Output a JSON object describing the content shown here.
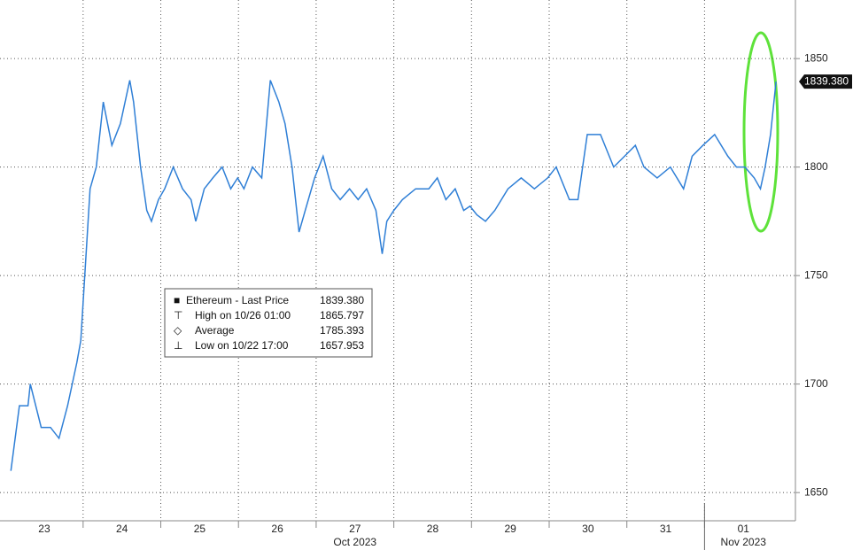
{
  "chart_data": {
    "type": "line",
    "series": [
      {
        "name": "Ethereum - Last Price",
        "color": "#2f7fd6",
        "x": [
          0.07,
          0.18,
          0.29,
          0.32,
          0.46,
          0.58,
          0.69,
          0.8,
          0.92,
          0.97,
          1.09,
          1.17,
          1.26,
          1.37,
          1.48,
          1.6,
          1.65,
          1.74,
          1.82,
          1.88,
          1.97,
          2.05,
          2.16,
          2.28,
          2.39,
          2.45,
          2.56,
          2.67,
          2.79,
          2.9,
          2.99,
          3.07,
          3.18,
          3.3,
          3.41,
          3.52,
          3.6,
          3.69,
          3.78,
          3.86,
          3.98,
          4.09,
          4.2,
          4.31,
          4.43,
          4.54,
          4.65,
          4.77,
          4.85,
          4.91,
          5.0,
          5.11,
          5.28,
          5.45,
          5.56,
          5.67,
          5.79,
          5.9,
          5.98,
          6.07,
          6.18,
          6.3,
          6.47,
          6.64,
          6.81,
          6.98,
          7.09,
          7.26,
          7.37,
          7.49,
          7.66,
          7.83,
          7.97,
          8.11,
          8.22,
          8.39,
          8.56,
          8.73,
          8.84,
          8.98,
          9.13,
          9.3,
          9.41,
          9.52,
          9.64,
          9.72,
          9.78,
          9.85,
          9.92
        ],
        "values": [
          1660,
          1690,
          1690,
          1700,
          1680,
          1680,
          1675,
          1690,
          1710,
          1720,
          1790,
          1800,
          1830,
          1810,
          1820,
          1840,
          1830,
          1800,
          1780,
          1775,
          1785,
          1790,
          1800,
          1790,
          1785,
          1775,
          1790,
          1795,
          1800,
          1790,
          1795,
          1790,
          1800,
          1795,
          1840,
          1830,
          1820,
          1800,
          1770,
          1780,
          1795,
          1805,
          1790,
          1785,
          1790,
          1785,
          1790,
          1780,
          1760,
          1775,
          1780,
          1785,
          1790,
          1790,
          1795,
          1785,
          1790,
          1780,
          1782,
          1778,
          1775,
          1780,
          1790,
          1795,
          1790,
          1795,
          1800,
          1785,
          1785,
          1815,
          1815,
          1800,
          1805,
          1810,
          1800,
          1795,
          1800,
          1790,
          1805,
          1810,
          1815,
          1805,
          1800,
          1800,
          1795,
          1790,
          1800,
          1815,
          1839.38
        ]
      }
    ],
    "last_price_label": "1839.380",
    "legend": [
      {
        "label": "Ethereum - Last Price",
        "value": "1839.380"
      },
      {
        "label": "High on 10/26 01:00",
        "value": "1865.797"
      },
      {
        "label": "Average",
        "value": "1785.393"
      },
      {
        "label": "Low on 10/22 17:00",
        "value": "1657.953"
      }
    ],
    "xlim": [
      -0.07,
      10.17
    ],
    "xticks": [
      1,
      2,
      3,
      4,
      5,
      6,
      7,
      8,
      9
    ],
    "day_labels": [
      {
        "value": 0.5,
        "label": "23"
      },
      {
        "value": 1.5,
        "label": "24"
      },
      {
        "value": 2.5,
        "label": "25"
      },
      {
        "value": 3.5,
        "label": "26"
      },
      {
        "value": 4.5,
        "label": "27"
      },
      {
        "value": 5.5,
        "label": "28"
      },
      {
        "value": 6.5,
        "label": "29"
      },
      {
        "value": 7.5,
        "label": "30"
      },
      {
        "value": 8.5,
        "label": "31"
      },
      {
        "value": 9.5,
        "label": "01"
      }
    ],
    "month_labels": [
      {
        "value": 4.5,
        "label": "Oct 2023"
      },
      {
        "value": 9.5,
        "label": "Nov 2023"
      }
    ],
    "month_divider": 9,
    "ylim": [
      1637,
      1877
    ],
    "yticks": [
      1650,
      1700,
      1750,
      1800,
      1850
    ],
    "grid": true
  }
}
